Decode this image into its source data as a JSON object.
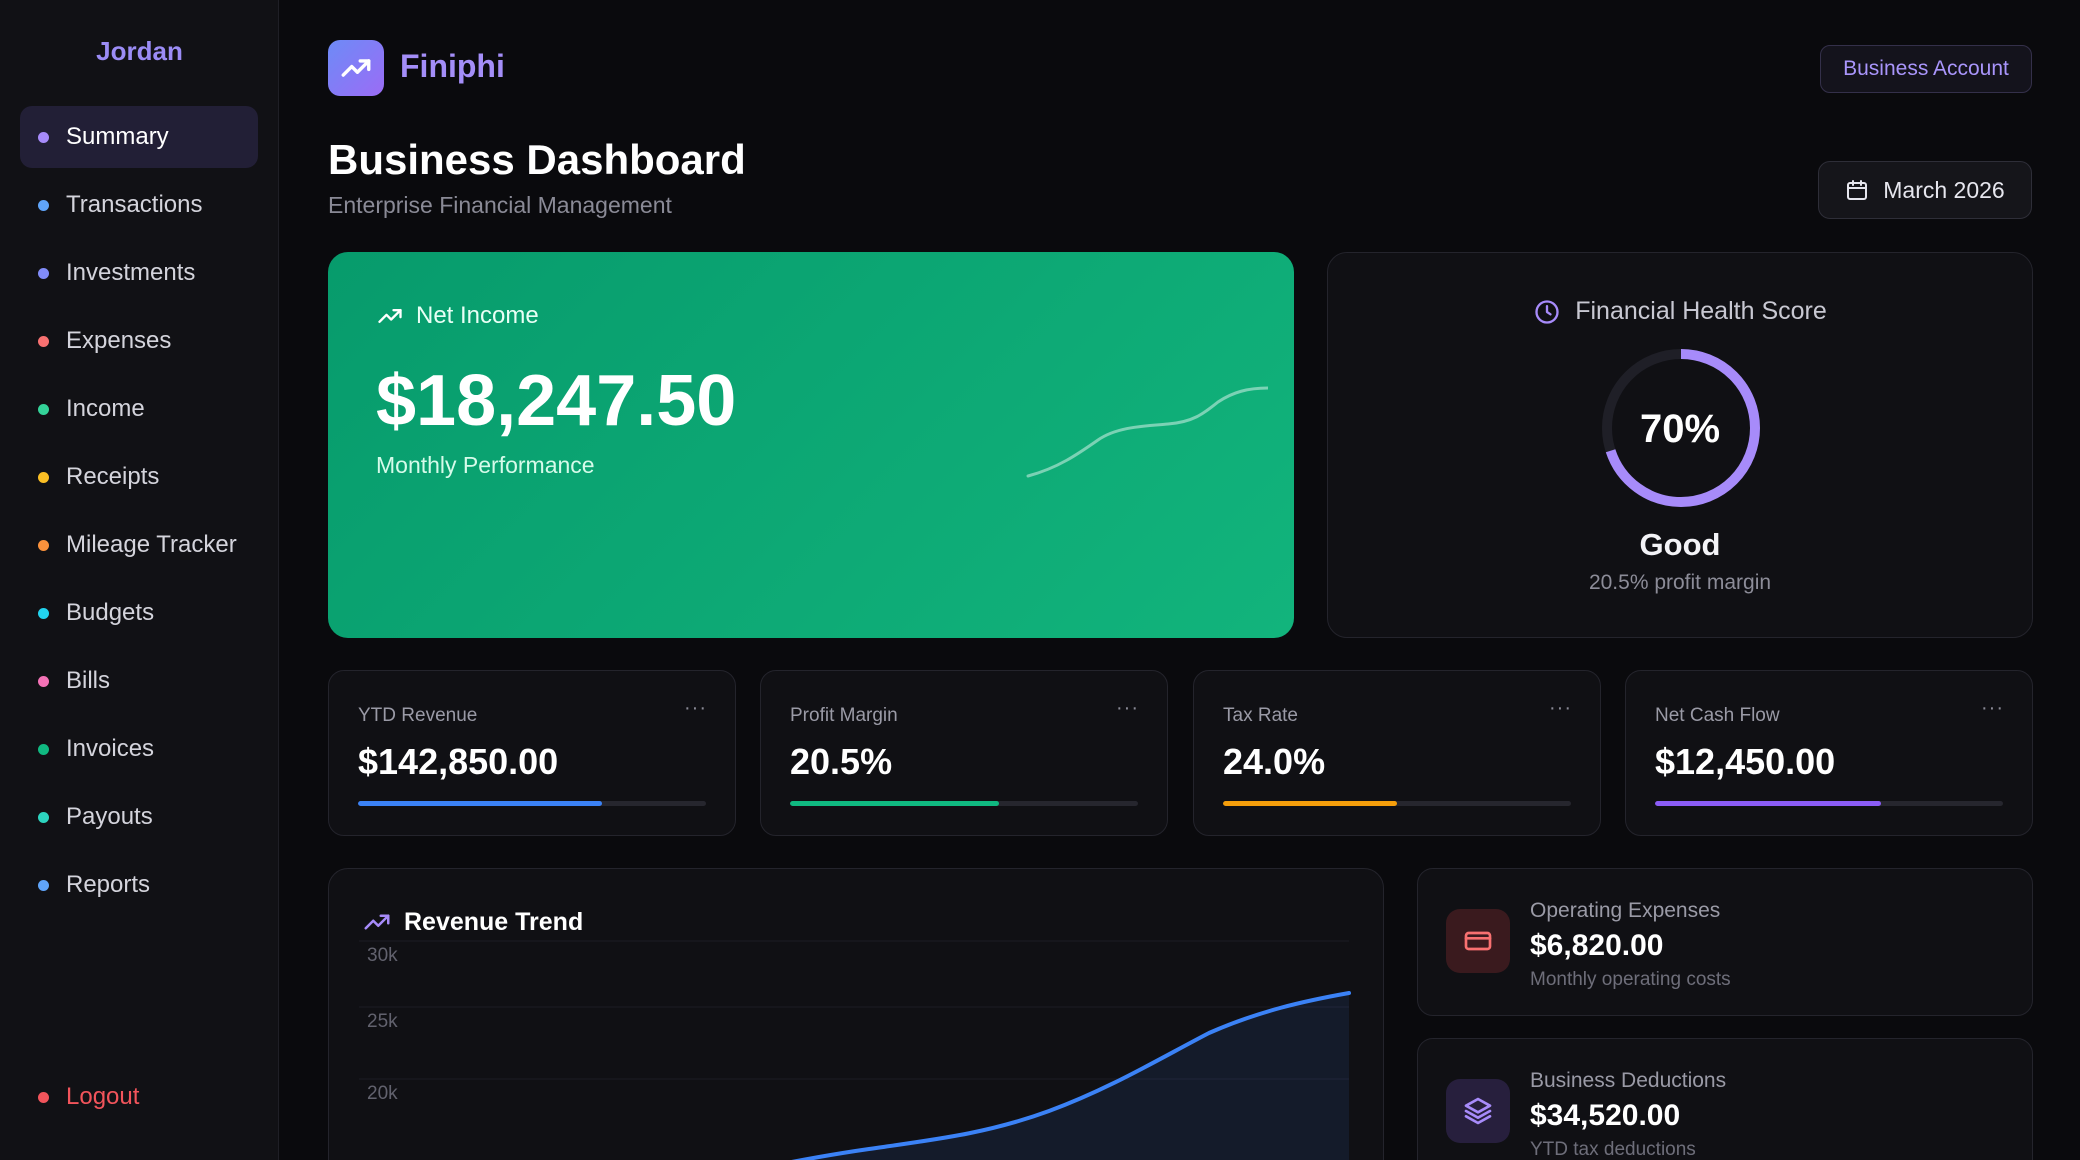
{
  "sidebar": {
    "user_name": "Jordan",
    "items": [
      {
        "label": "Summary",
        "color": "#a78bfa",
        "active": true
      },
      {
        "label": "Transactions",
        "color": "#60a5fa"
      },
      {
        "label": "Investments",
        "color": "#818cf8"
      },
      {
        "label": "Expenses",
        "color": "#f87171"
      },
      {
        "label": "Income",
        "color": "#34d399"
      },
      {
        "label": "Receipts",
        "color": "#fbbf24"
      },
      {
        "label": "Mileage Tracker",
        "color": "#fb923c"
      },
      {
        "label": "Budgets",
        "color": "#22d3ee"
      },
      {
        "label": "Bills",
        "color": "#f472b6"
      },
      {
        "label": "Invoices",
        "color": "#10b981"
      },
      {
        "label": "Payouts",
        "color": "#2dd4bf"
      },
      {
        "label": "Reports",
        "color": "#60a5fa"
      }
    ],
    "logout_label": "Logout",
    "logout_color": "#f2545b"
  },
  "header": {
    "brand": "Finiphi",
    "account_label": "Business Account",
    "title": "Business Dashboard",
    "subtitle": "Enterprise Financial Management",
    "date_label": "March 2026"
  },
  "net_income": {
    "label": "Net Income",
    "value": "$18,247.50",
    "sub": "Monthly Performance"
  },
  "health": {
    "title": "Financial Health Score",
    "score": 70,
    "score_label": "70%",
    "status": "Good",
    "sub": "20.5% profit margin",
    "color": "#a78bfa"
  },
  "stats": [
    {
      "label": "YTD Revenue",
      "value": "$142,850.00",
      "progress": 0.7,
      "color": "#3b82f6"
    },
    {
      "label": "Profit Margin",
      "value": "20.5%",
      "progress": 0.6,
      "color": "#10b981"
    },
    {
      "label": "Tax Rate",
      "value": "24.0%",
      "progress": 0.5,
      "color": "#f59e0b"
    },
    {
      "label": "Net Cash Flow",
      "value": "$12,450.00",
      "progress": 0.65,
      "color": "#8b5cf6"
    }
  ],
  "stat_more_label": "···",
  "revenue_trend": {
    "title": "Revenue Trend",
    "chart_data": {
      "type": "area",
      "y_ticks": [
        "30k",
        "25k",
        "20k"
      ],
      "ylim": [
        0,
        30000
      ],
      "line_color": "#3b82f6"
    }
  },
  "side_cards": [
    {
      "label": "Operating Expenses",
      "value": "$6,820.00",
      "sub": "Monthly operating costs",
      "icon": "credit-card-icon",
      "icon_color": "#f87171",
      "icon_bg": "#3a1a1e"
    },
    {
      "label": "Business Deductions",
      "value": "$34,520.00",
      "sub": "YTD tax deductions",
      "icon": "layers-icon",
      "icon_color": "#a78bfa",
      "icon_bg": "#271f3d"
    }
  ]
}
